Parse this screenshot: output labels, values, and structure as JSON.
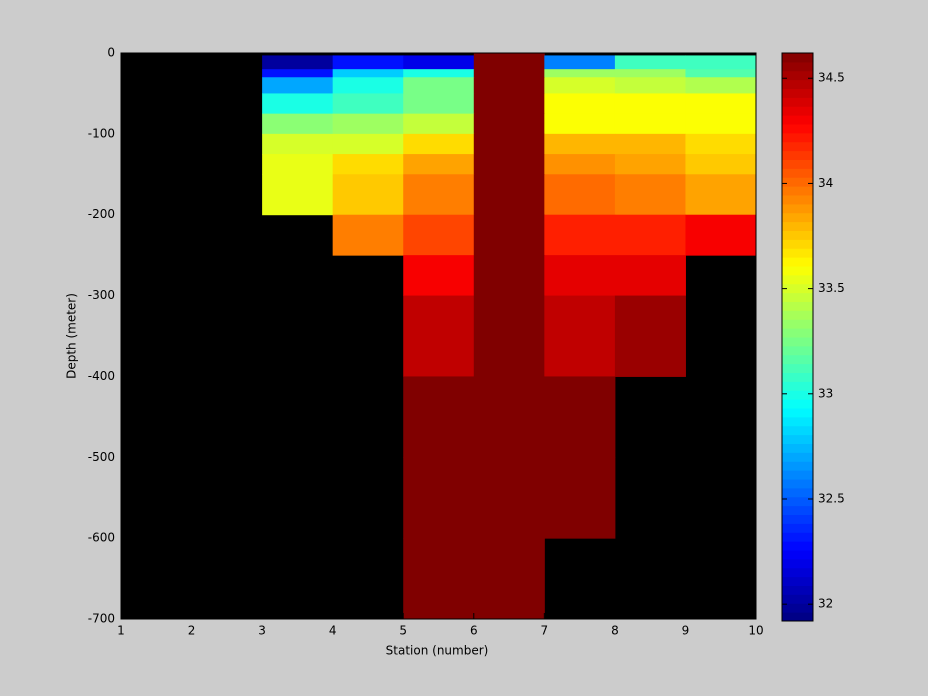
{
  "chart_data": {
    "type": "heatmap",
    "xlabel": "Station (number)",
    "ylabel": "Depth (meter)",
    "x": [
      1,
      2,
      3,
      4,
      5,
      6,
      7,
      8,
      9,
      10
    ],
    "y": [
      0,
      -3,
      -20,
      -30,
      -50,
      -75,
      -100,
      -125,
      -150,
      -200,
      -250,
      -300,
      -400,
      -500,
      -600,
      -700
    ],
    "values": [
      [
        null,
        null,
        null,
        null,
        null,
        34.62,
        null,
        null,
        null
      ],
      [
        null,
        null,
        32.0,
        32.3,
        32.2,
        34.62,
        32.6,
        33.1,
        33.1
      ],
      [
        null,
        null,
        32.3,
        32.8,
        33.0,
        34.62,
        33.35,
        33.35,
        33.15
      ],
      [
        null,
        null,
        32.7,
        33.0,
        33.25,
        34.62,
        33.5,
        33.45,
        33.4
      ],
      [
        null,
        null,
        33.0,
        33.1,
        33.25,
        34.62,
        33.6,
        33.6,
        33.6
      ],
      [
        null,
        null,
        33.3,
        33.35,
        33.45,
        34.62,
        33.6,
        33.6,
        33.6
      ],
      [
        null,
        null,
        33.5,
        33.5,
        33.7,
        34.62,
        33.8,
        33.8,
        33.7
      ],
      [
        null,
        null,
        33.55,
        33.7,
        33.85,
        34.62,
        33.9,
        33.85,
        33.75
      ],
      [
        null,
        null,
        33.55,
        33.75,
        33.95,
        34.62,
        34.0,
        33.95,
        33.85
      ],
      [
        null,
        null,
        null,
        33.95,
        34.1,
        34.62,
        34.2,
        34.2,
        34.3
      ],
      [
        null,
        null,
        null,
        null,
        34.3,
        34.62,
        34.35,
        34.35,
        null
      ],
      [
        null,
        null,
        null,
        null,
        34.45,
        34.62,
        34.45,
        34.55,
        null
      ],
      [
        null,
        null,
        null,
        null,
        34.62,
        34.62,
        34.62,
        null,
        null
      ],
      [
        null,
        null,
        null,
        null,
        34.62,
        34.62,
        34.62,
        null,
        null
      ],
      [
        null,
        null,
        null,
        null,
        34.62,
        34.62,
        null,
        null,
        null
      ]
    ],
    "colormap": "jet",
    "background": "#000000",
    "clim": [
      31.92,
      34.62
    ],
    "cticks": [
      32,
      32.5,
      33,
      33.5,
      34,
      34.5
    ],
    "xlim": [
      1,
      10
    ],
    "xticks": [
      1,
      2,
      3,
      4,
      5,
      6,
      7,
      8,
      9,
      10
    ],
    "ylim": [
      -700,
      0
    ],
    "yticks": [
      -700,
      -600,
      -500,
      -400,
      -300,
      -200,
      -100,
      0
    ]
  }
}
